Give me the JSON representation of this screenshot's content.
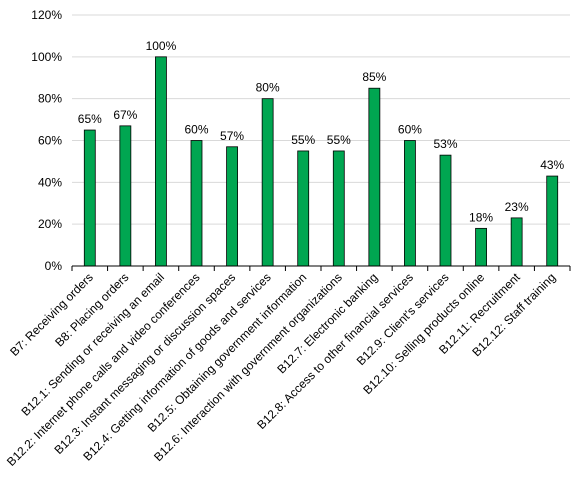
{
  "chart_data": {
    "type": "bar",
    "title": "",
    "xlabel": "",
    "ylabel": "",
    "ylim": [
      0,
      120
    ],
    "y_ticks": [
      "0%",
      "20%",
      "40%",
      "60%",
      "80%",
      "100%",
      "120%"
    ],
    "y_tick_values": [
      0,
      20,
      40,
      60,
      80,
      100,
      120
    ],
    "grid": true,
    "legend": "none",
    "bar_color": "#00A651",
    "categories": [
      "B7: Receiving orders",
      "B8: Placing orders",
      "B12.1: Sending or receiving an email",
      "B12.2: Internet phone calls and video conferences",
      "B12.3: Instant messaging or discussion spaces",
      "B12.4: Getting information of goods and services",
      "B12.5: Obtaining government information",
      "B12.6: Interaction with government organizations",
      "B12.7: Electronic banking",
      "B12.8: Access to other financial services",
      "B12.9: Client’s services",
      "B12.10: Selling products online",
      "B12.11: Recruitment",
      "B12.12: Staff training"
    ],
    "values": [
      65,
      67,
      100,
      60,
      57,
      80,
      55,
      55,
      85,
      60,
      53,
      18,
      23,
      43
    ],
    "data_labels": [
      "65%",
      "67%",
      "100%",
      "60%",
      "57%",
      "80%",
      "55%",
      "55%",
      "85%",
      "60%",
      "53%",
      "18%",
      "23%",
      "43%"
    ]
  }
}
